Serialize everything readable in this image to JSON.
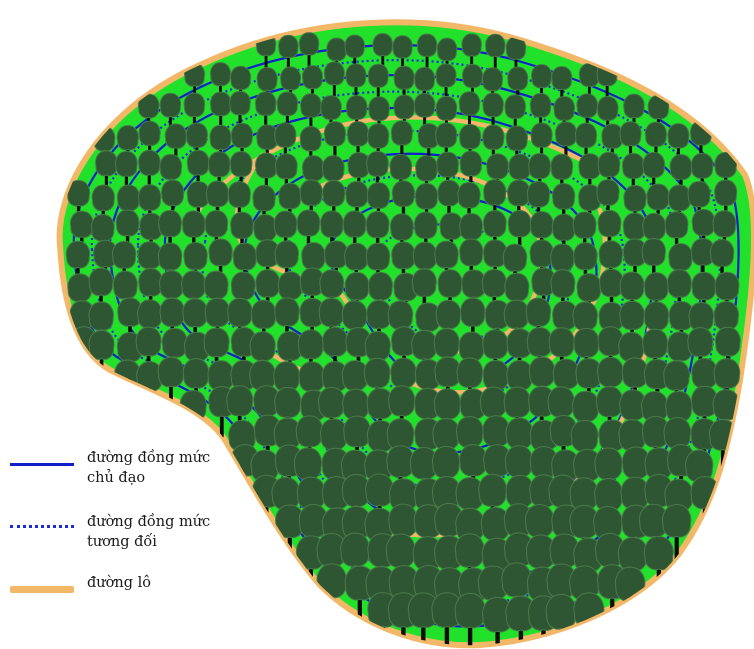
{
  "colors": {
    "ground": "#22e12a",
    "boundary": "#f2b868",
    "main_contour": "#1020c8",
    "relative_contour": "#1a2cd6",
    "road": "#f2b868",
    "tree_crown": "#2e5632",
    "tree_crown_light": "#4a7a4c",
    "tree_trunk": "#0b0b0b"
  },
  "legend": [
    {
      "key": "main",
      "style": "solid",
      "line1": "đường đồng mức",
      "line2": "chủ đạo"
    },
    {
      "key": "relative",
      "style": "dotted",
      "line1": "đường đồng mức",
      "line2": "tương đối"
    },
    {
      "key": "road",
      "style": "road",
      "line1": "đường lô",
      "line2": ""
    }
  ]
}
